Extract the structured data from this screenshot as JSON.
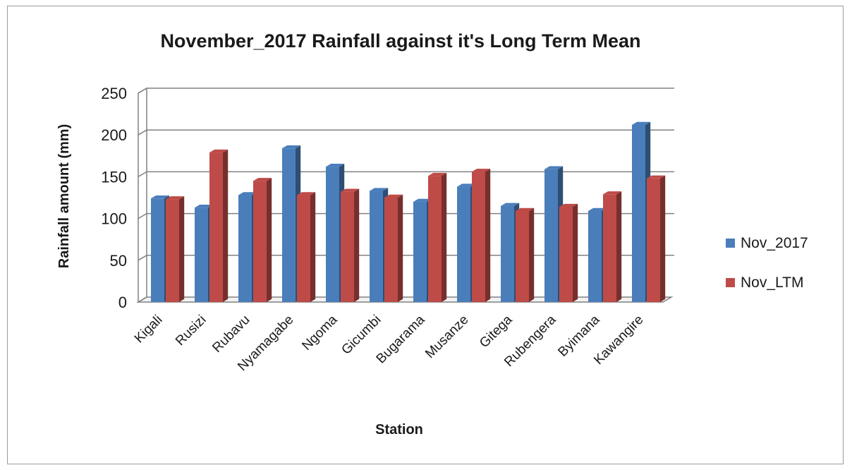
{
  "chart_data": {
    "type": "bar",
    "title": "November_2017 Rainfall against it's Long Term Mean",
    "xlabel": "Station",
    "ylabel": "Rainfall amount (mm)",
    "ylim": [
      0,
      250
    ],
    "yticks": [
      0,
      50,
      100,
      150,
      200,
      250
    ],
    "grid": true,
    "legend_position": "right",
    "categories": [
      "Kigali",
      "Rusizi",
      "Rubavu",
      "Nyamagabe",
      "Ngoma",
      "Gicumbi",
      "Bugarama",
      "Musanze",
      "Gitega",
      "Rubengera",
      "Byimana",
      "Kawangire"
    ],
    "series": [
      {
        "name": "Nov_2017",
        "color": "#4a7ebb",
        "values": [
          124,
          113,
          128,
          184,
          162,
          133,
          120,
          138,
          115,
          159,
          109,
          212
        ]
      },
      {
        "name": "Nov_LTM",
        "color": "#be4b48",
        "values": [
          123,
          179,
          145,
          128,
          132,
          125,
          151,
          156,
          109,
          114,
          129,
          148
        ]
      }
    ]
  }
}
